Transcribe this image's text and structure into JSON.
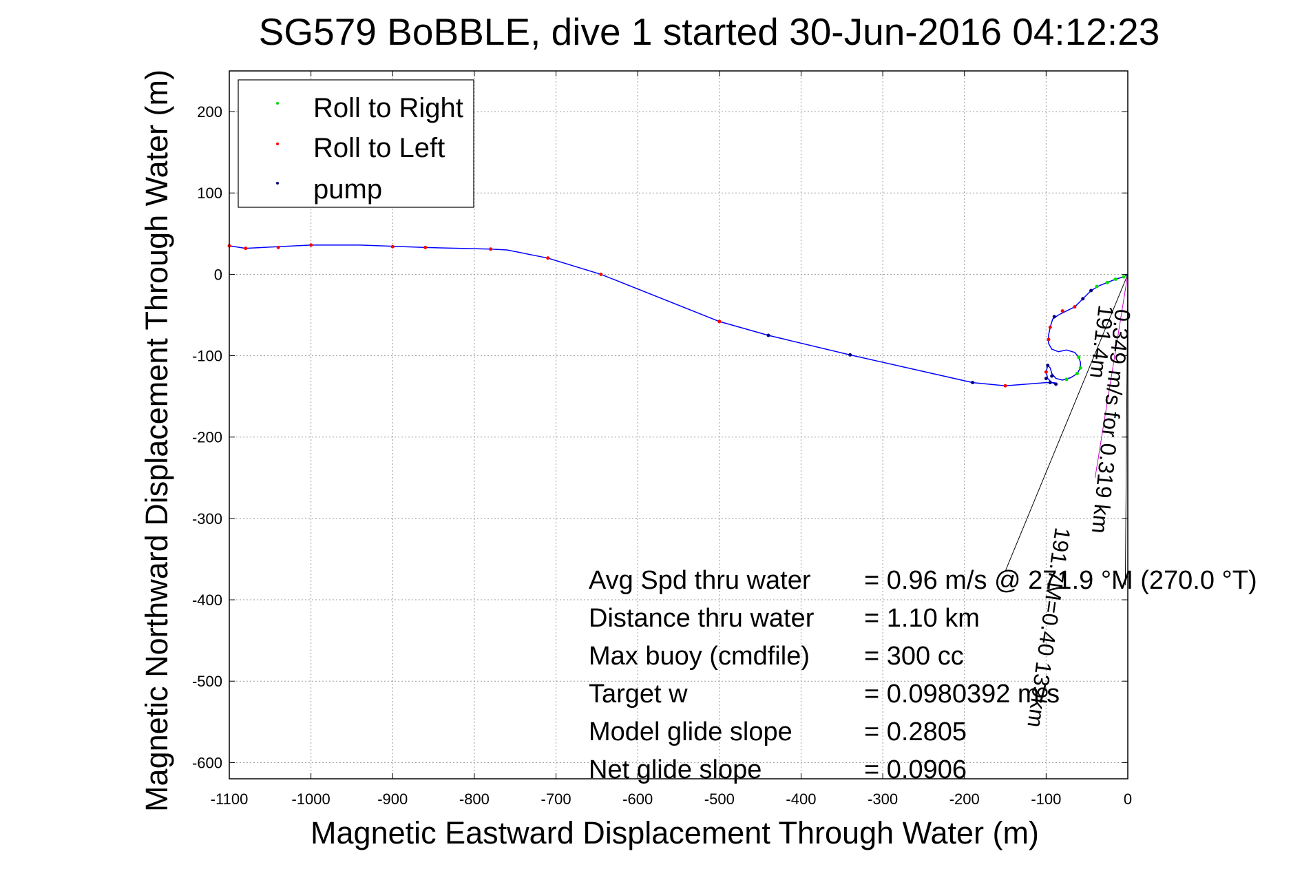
{
  "chart_data": {
    "type": "line",
    "title": "SG579 BoBBLE, dive 1 started 30-Jun-2016 04:12:23",
    "xlabel": "Magnetic Eastward Displacement Through Water (m)",
    "ylabel": "Magnetic Northward Displacement Through Water (m)",
    "xlim": [
      -1100,
      0
    ],
    "ylim": [
      -620,
      250
    ],
    "xticks": [
      -1100,
      -1000,
      -900,
      -800,
      -700,
      -600,
      -500,
      -400,
      -300,
      -200,
      -100,
      0
    ],
    "yticks": [
      -600,
      -500,
      -400,
      -300,
      -200,
      -100,
      0,
      100,
      200
    ],
    "grid": true,
    "legend_position": "top-left",
    "legend": [
      {
        "label": "Roll to Right",
        "color": "#00dd00"
      },
      {
        "label": "Roll to Left",
        "color": "#ff0000"
      },
      {
        "label": "pump",
        "color": "#000080"
      }
    ],
    "track_color": "#0000ff",
    "current_line_color": "#cc00cc",
    "track": {
      "x": [
        0,
        -5,
        -15,
        -25,
        -35,
        -40,
        -45,
        -55,
        -65,
        -75,
        -85,
        -92,
        -95,
        -97,
        -97,
        -93,
        -85,
        -75,
        -65,
        -60,
        -58,
        -58,
        -62,
        -70,
        -80,
        -88,
        -93,
        -95,
        -98,
        -100,
        -98,
        -93,
        -88,
        -90,
        -100,
        -150,
        -190,
        -340,
        -440,
        -500,
        -645,
        -710,
        -760,
        -780,
        -860,
        -940,
        -1000,
        -1080,
        -1100
      ],
      "y": [
        0,
        -3,
        -6,
        -10,
        -14,
        -17,
        -20,
        -30,
        -40,
        -45,
        -50,
        -55,
        -65,
        -75,
        -85,
        -92,
        -95,
        -93,
        -96,
        -102,
        -108,
        -115,
        -122,
        -127,
        -130,
        -128,
        -122,
        -115,
        -112,
        -120,
        -128,
        -133,
        -135,
        -133,
        -133,
        -137,
        -133,
        -99,
        -75,
        -58,
        0,
        20,
        30,
        31,
        33,
        36,
        36,
        32,
        35
      ]
    },
    "roll_right_points": {
      "x": [
        -5,
        -15,
        -25,
        -38,
        -60,
        -58,
        -62,
        -75
      ],
      "y": [
        -3,
        -6,
        -10,
        -15,
        -102,
        -115,
        -122,
        -129
      ]
    },
    "roll_left_points": {
      "x": [
        -65,
        -80,
        -95,
        -97,
        -100,
        -150,
        -500,
        -645,
        -710,
        -780,
        -860,
        -900,
        -1000,
        -1040,
        -1080,
        -1100
      ],
      "y": [
        -40,
        -45,
        -65,
        -80,
        -120,
        -137,
        -58,
        0,
        20,
        31,
        33,
        34,
        36,
        33,
        32,
        35
      ]
    },
    "pump_points": {
      "x": [
        -45,
        -55,
        -90,
        -93,
        -98,
        -100,
        -95,
        -88,
        -190,
        -340,
        -440
      ],
      "y": [
        -20,
        -30,
        -52,
        -125,
        -112,
        -128,
        -133,
        -135,
        -133,
        -99,
        -75
      ]
    },
    "current_lines": [
      {
        "x": [
          0,
          -150
        ],
        "y": [
          0,
          -365
        ]
      },
      {
        "x": [
          0,
          -3
        ],
        "y": [
          0,
          -382
        ]
      },
      {
        "x": [
          0,
          -40
        ],
        "y": [
          0,
          -250
        ]
      }
    ],
    "annotations": [
      {
        "label": "Avg Spd thru water",
        "value": "=  0.96 m/s @ 271.9 °M (270.0 °T)"
      },
      {
        "label": "Distance thru water",
        "value": "=  1.10 km"
      },
      {
        "label": "Max buoy (cmdfile)",
        "value": "= 300 cc"
      },
      {
        "label": "Target w",
        "value": "= 0.0980392 m/s"
      },
      {
        "label": "Model glide slope",
        "value": "= 0.2805"
      },
      {
        "label": "Net glide slope",
        "value": "= 0.0906"
      }
    ],
    "rotated_labels": [
      "0.349 m/s for 0.319 km",
      "191.4m",
      "191.7M=0.40 139km"
    ]
  }
}
